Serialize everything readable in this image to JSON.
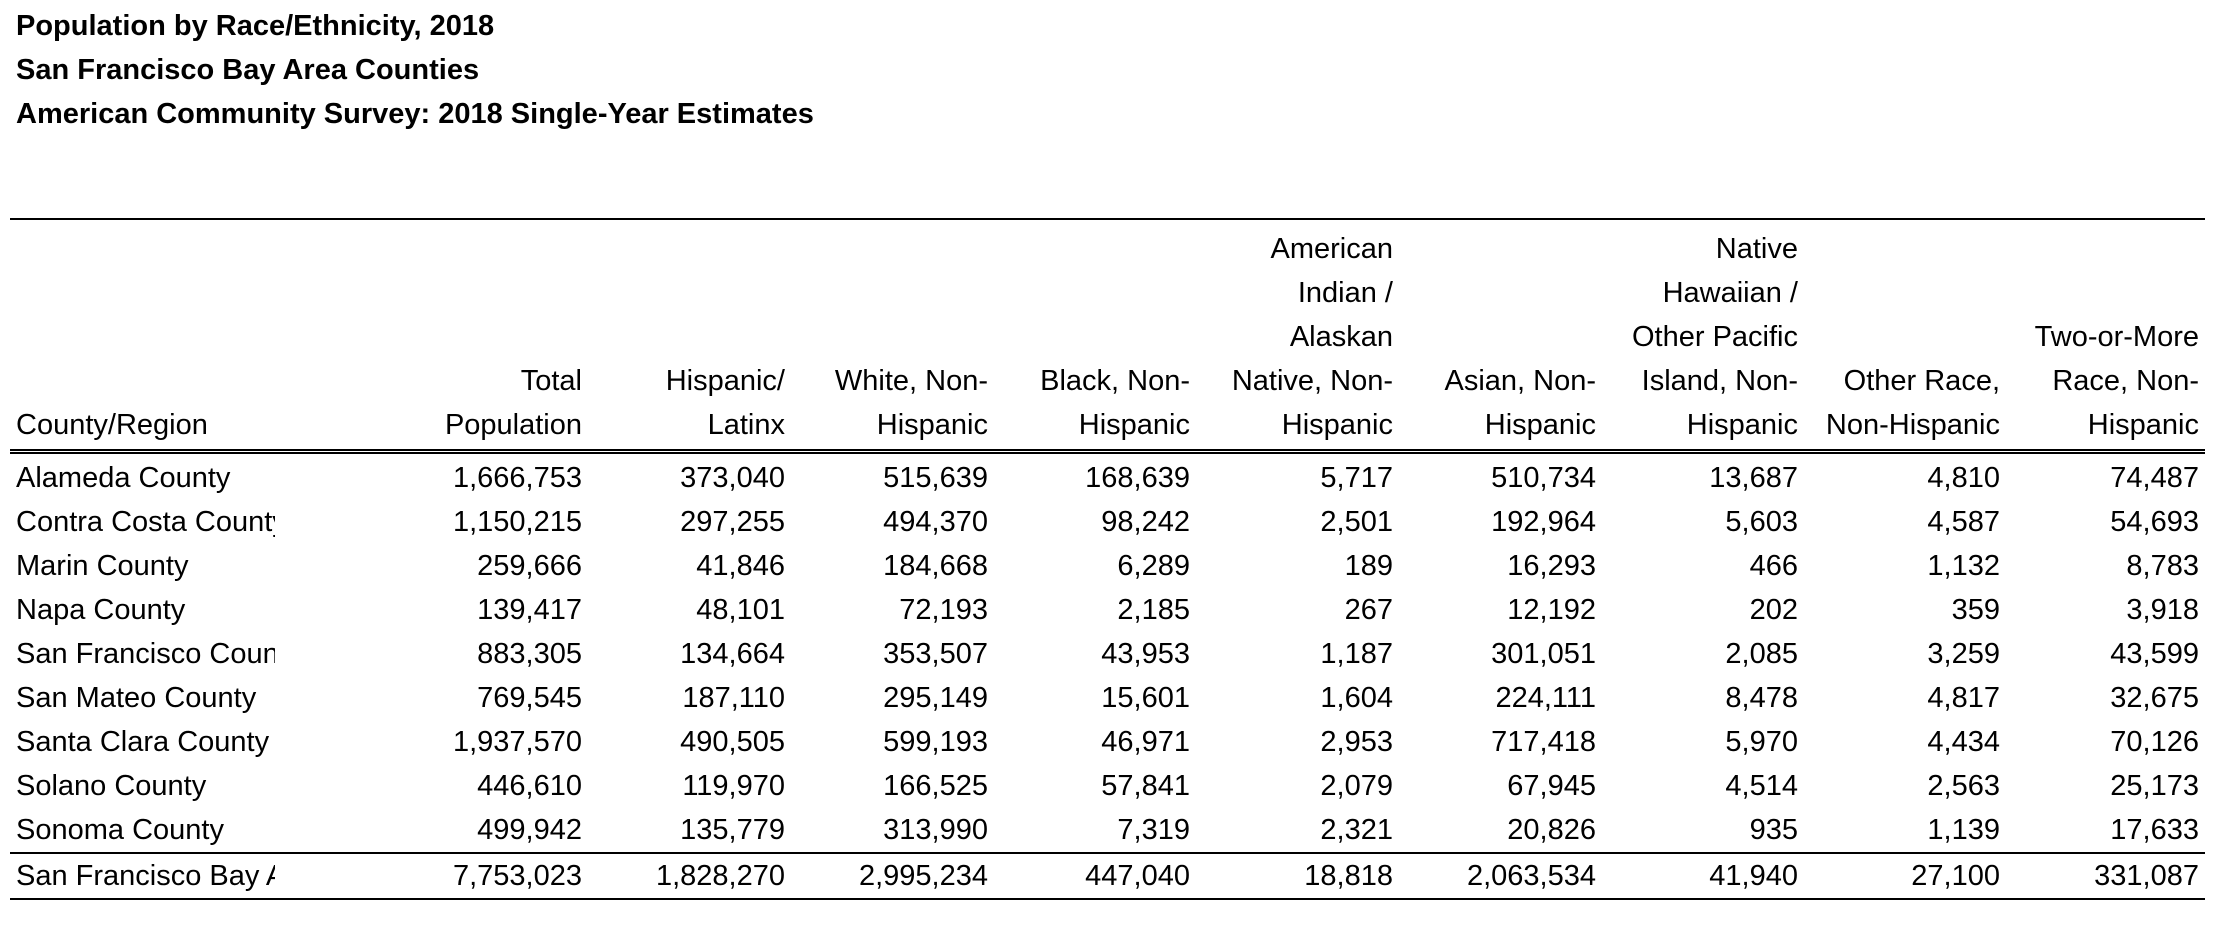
{
  "titles": {
    "line1": "Population by Race/Ethnicity, 2018",
    "line2": "San Francisco Bay Area Counties",
    "line3": "American Community Survey: 2018 Single-Year Estimates"
  },
  "table": {
    "headers": [
      "County/Region",
      "Total\nPopulation",
      "Hispanic/\nLatinx",
      "White, Non-\nHispanic",
      "Black, Non-\nHispanic",
      "American\nIndian /\nAlaskan\nNative, Non-\nHispanic",
      "Asian, Non-\nHispanic",
      "Native\nHawaiian /\nOther Pacific\nIsland, Non-\nHispanic",
      "Other Race,\nNon-Hispanic",
      "Two-or-More\nRace, Non-\nHispanic"
    ],
    "rows": [
      [
        "Alameda County",
        "1,666,753",
        "373,040",
        "515,639",
        "168,639",
        "5,717",
        "510,734",
        "13,687",
        "4,810",
        "74,487"
      ],
      [
        "Contra Costa County",
        "1,150,215",
        "297,255",
        "494,370",
        "98,242",
        "2,501",
        "192,964",
        "5,603",
        "4,587",
        "54,693"
      ],
      [
        "Marin County",
        "259,666",
        "41,846",
        "184,668",
        "6,289",
        "189",
        "16,293",
        "466",
        "1,132",
        "8,783"
      ],
      [
        "Napa County",
        "139,417",
        "48,101",
        "72,193",
        "2,185",
        "267",
        "12,192",
        "202",
        "359",
        "3,918"
      ],
      [
        "San Francisco County",
        "883,305",
        "134,664",
        "353,507",
        "43,953",
        "1,187",
        "301,051",
        "2,085",
        "3,259",
        "43,599"
      ],
      [
        "San Mateo County",
        "769,545",
        "187,110",
        "295,149",
        "15,601",
        "1,604",
        "224,111",
        "8,478",
        "4,817",
        "32,675"
      ],
      [
        "Santa Clara County",
        "1,937,570",
        "490,505",
        "599,193",
        "46,971",
        "2,953",
        "717,418",
        "5,970",
        "4,434",
        "70,126"
      ],
      [
        "Solano County",
        "446,610",
        "119,970",
        "166,525",
        "57,841",
        "2,079",
        "67,945",
        "4,514",
        "2,563",
        "25,173"
      ],
      [
        "Sonoma County",
        "499,942",
        "135,779",
        "313,990",
        "7,319",
        "2,321",
        "20,826",
        "935",
        "1,139",
        "17,633"
      ]
    ],
    "total": [
      "San Francisco Bay Area",
      "7,753,023",
      "1,828,270",
      "2,995,234",
      "447,040",
      "18,818",
      "2,063,534",
      "41,940",
      "27,100",
      "331,087"
    ]
  }
}
